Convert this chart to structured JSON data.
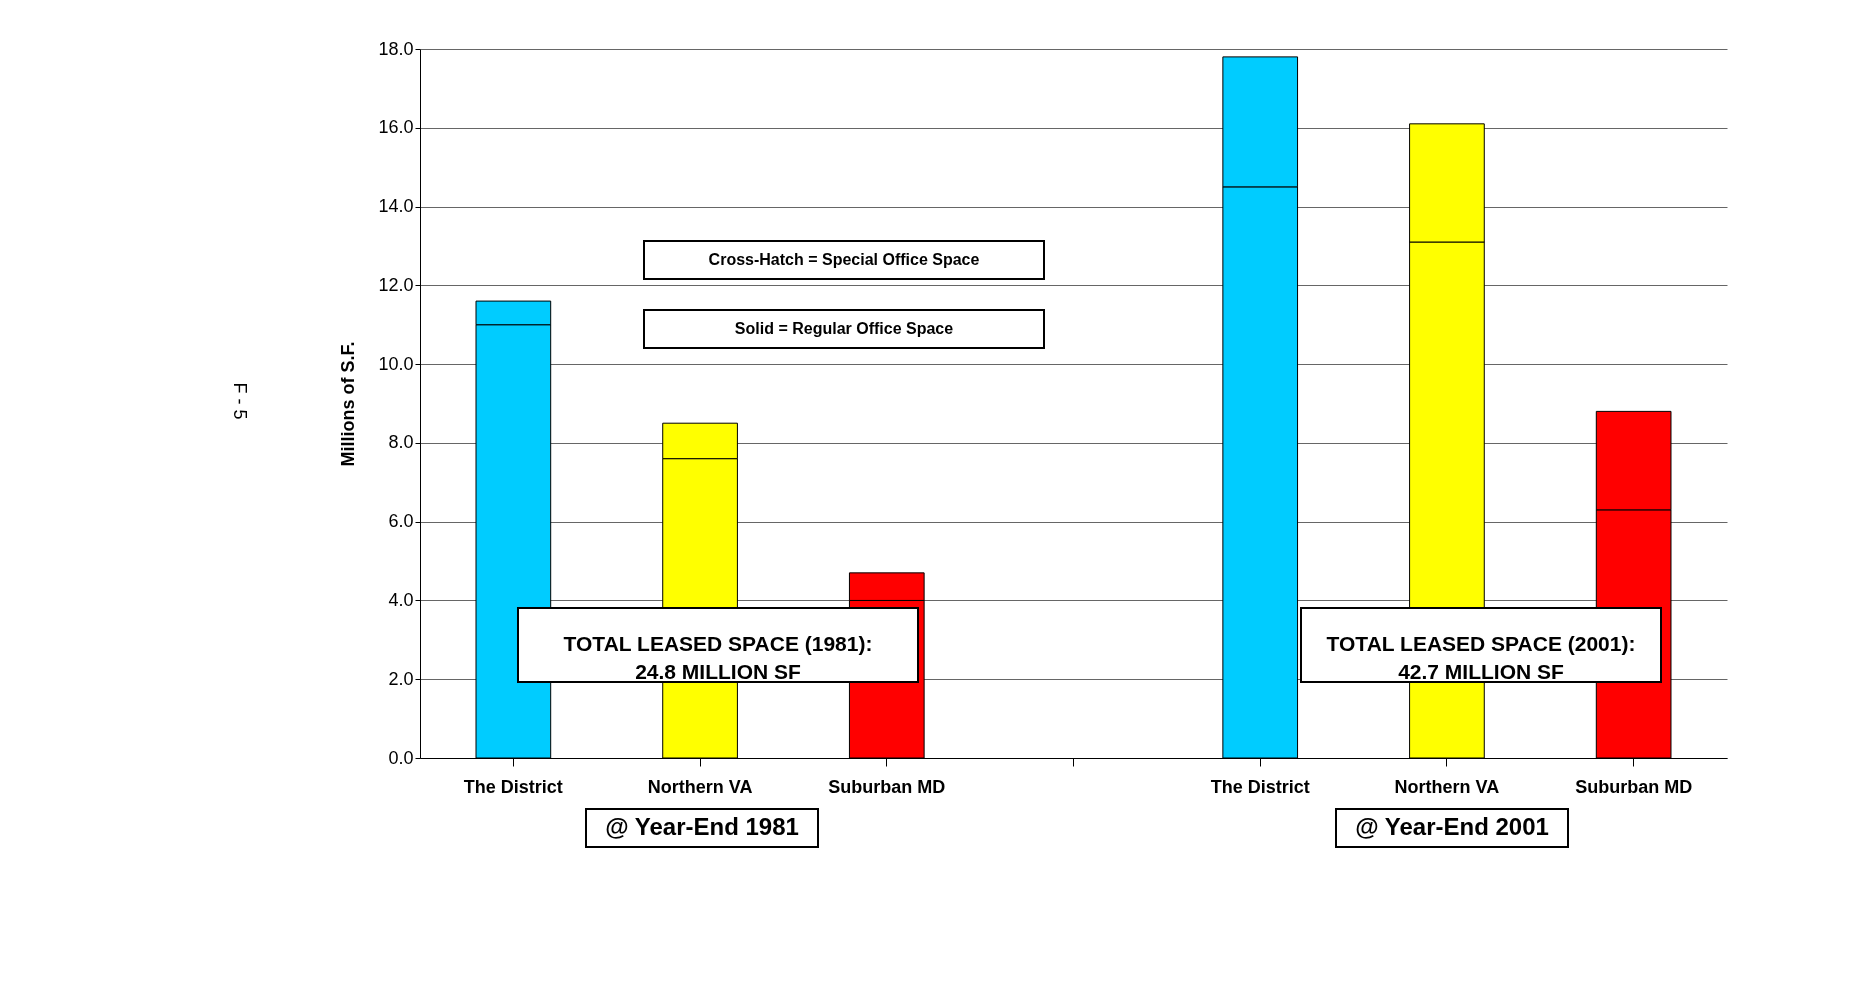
{
  "chart_data": {
    "type": "bar",
    "stacked": true,
    "ylabel": "Millions of S.F.",
    "categories": [
      "The District",
      "Northern VA",
      "Suburban MD",
      null,
      "The District",
      "Northern VA",
      "Suburban MD"
    ],
    "series": [
      {
        "colors": [
          "#00ccff",
          "#ffff00",
          "#ff0000",
          null,
          "#00ccff",
          "#ffff00",
          "#ff0000"
        ],
        "values": [
          11.0,
          7.6,
          4.0,
          null,
          14.5,
          13.1,
          6.3
        ]
      },
      {
        "colors": [
          "#00ccff",
          "#ffff00",
          "#ff0000",
          null,
          "#00ccff",
          "#ffff00",
          "#ff0000"
        ],
        "values": [
          0.6,
          0.9,
          0.7,
          null,
          3.3,
          3.0,
          2.5
        ]
      }
    ],
    "ylim": [
      0,
      18
    ],
    "yticks": [
      {
        "value": 0,
        "label": "0.0"
      },
      {
        "value": 2,
        "label": "2.0"
      },
      {
        "value": 4,
        "label": "4.0"
      },
      {
        "value": 6,
        "label": "6.0"
      },
      {
        "value": 8,
        "label": "8.0"
      },
      {
        "value": 10,
        "label": "10.0"
      },
      {
        "value": 12,
        "label": "12.0"
      },
      {
        "value": 14,
        "label": "14.0"
      },
      {
        "value": 16,
        "label": "16.0"
      },
      {
        "value": 18,
        "label": "18.0"
      }
    ],
    "grid": "y",
    "annotations": [
      "Cross-Hatch = Special Office Space",
      "Solid = Regular Office Space",
      "TOTAL LEASED SPACE (1981):\n24.8 MILLION SF",
      "TOTAL LEASED SPACE (2001):\n42.7 MILLION SF",
      "@ Year-End 1981",
      "@ Year-End 2001",
      "F - 5"
    ]
  }
}
